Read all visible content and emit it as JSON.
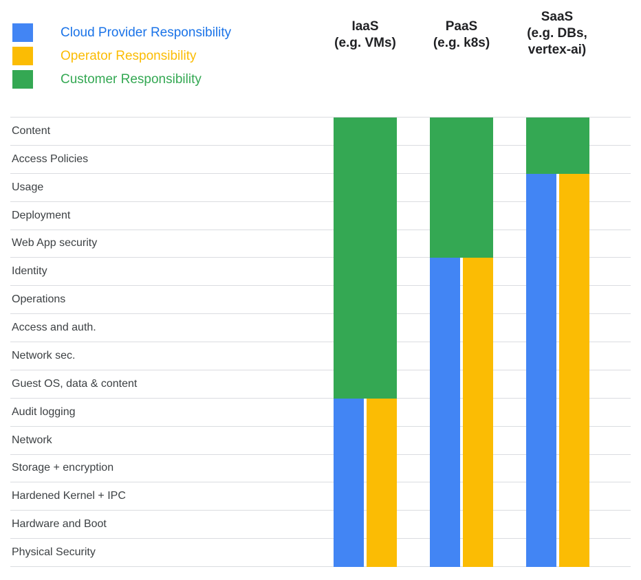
{
  "chart_data": {
    "type": "heatmap",
    "legend_position": "top-left",
    "grid": "horizontal-lines",
    "line_color": "#DADCE0",
    "legend": [
      {
        "role": "provider",
        "label": "Cloud Provider Responsibility",
        "color": "#4285F4",
        "text_color": "#1A73E8"
      },
      {
        "role": "operator",
        "label": "Operator Responsibility",
        "color": "#FBBC04",
        "text_color": "#FBBC04"
      },
      {
        "role": "customer",
        "label": "Customer Responsibility",
        "color": "#34A853",
        "text_color": "#34A853"
      }
    ],
    "columns": [
      {
        "id": "iaas",
        "title": "IaaS",
        "subtitle": "(e.g. VMs)",
        "customer_rows": 10
      },
      {
        "id": "paas",
        "title": "PaaS",
        "subtitle": "(e.g. k8s)",
        "customer_rows": 5
      },
      {
        "id": "saas",
        "title": "SaaS",
        "subtitle": "(e.g. DBs,\nvertex-ai)",
        "customer_rows": 2
      }
    ],
    "rows": [
      "Content",
      "Access Policies",
      "Usage",
      "Deployment",
      "Web App security",
      "Identity",
      "Operations",
      "Access and auth.",
      "Network sec.",
      "Guest OS, data & content",
      "Audit logging",
      "Network",
      "Storage + encryption",
      "Hardened Kernel + IPC",
      "Hardware and Boot",
      "Physical Security"
    ],
    "values": [
      [
        "customer",
        "customer",
        "customer"
      ],
      [
        "customer",
        "customer",
        "customer"
      ],
      [
        "customer",
        "customer",
        "provider+operator"
      ],
      [
        "customer",
        "customer",
        "provider+operator"
      ],
      [
        "customer",
        "customer",
        "provider+operator"
      ],
      [
        "customer",
        "provider+operator",
        "provider+operator"
      ],
      [
        "customer",
        "provider+operator",
        "provider+operator"
      ],
      [
        "customer",
        "provider+operator",
        "provider+operator"
      ],
      [
        "customer",
        "provider+operator",
        "provider+operator"
      ],
      [
        "customer",
        "provider+operator",
        "provider+operator"
      ],
      [
        "provider+operator",
        "provider+operator",
        "provider+operator"
      ],
      [
        "provider+operator",
        "provider+operator",
        "provider+operator"
      ],
      [
        "provider+operator",
        "provider+operator",
        "provider+operator"
      ],
      [
        "provider+operator",
        "provider+operator",
        "provider+operator"
      ],
      [
        "provider+operator",
        "provider+operator",
        "provider+operator"
      ],
      [
        "provider+operator",
        "provider+operator",
        "provider+operator"
      ]
    ]
  }
}
